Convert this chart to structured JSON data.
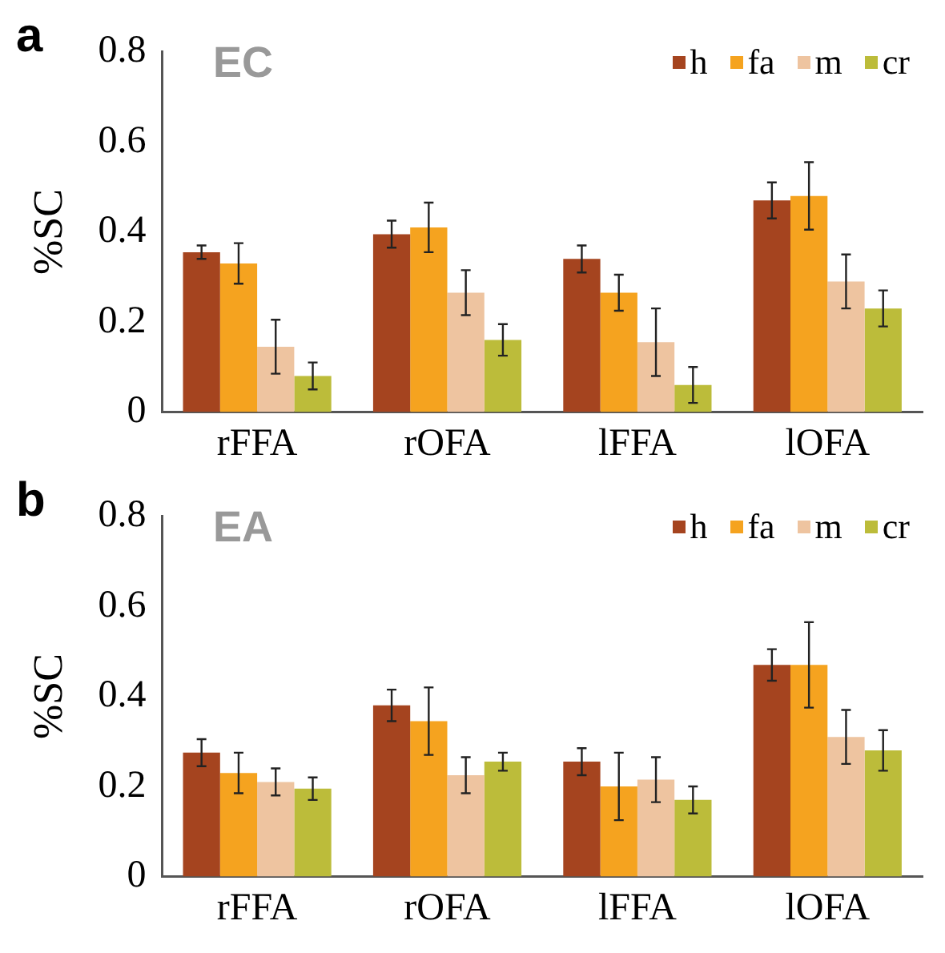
{
  "chart_data": [
    {
      "type": "bar",
      "title": "a",
      "subtitle": "EC",
      "ylabel": "%SC",
      "categories": [
        "rFFA",
        "rOFA",
        "lFFA",
        "lOFA"
      ],
      "ylim": [
        0,
        0.8
      ],
      "yticks": [
        0,
        0.2,
        0.4,
        0.6,
        0.8
      ],
      "legend": "top right",
      "grid": false,
      "series": [
        {
          "name": "h",
          "color": "#a5441f",
          "values": [
            0.355,
            0.395,
            0.34,
            0.47
          ],
          "errors": [
            0.015,
            0.03,
            0.03,
            0.04
          ]
        },
        {
          "name": "fa",
          "color": "#f5a31f",
          "values": [
            0.33,
            0.41,
            0.265,
            0.48
          ],
          "errors": [
            0.045,
            0.055,
            0.04,
            0.075
          ]
        },
        {
          "name": "m",
          "color": "#eec4a0",
          "values": [
            0.145,
            0.265,
            0.155,
            0.29
          ],
          "errors": [
            0.06,
            0.05,
            0.075,
            0.06
          ]
        },
        {
          "name": "cr",
          "color": "#bcbc3a",
          "values": [
            0.08,
            0.16,
            0.06,
            0.23
          ],
          "errors": [
            0.03,
            0.035,
            0.04,
            0.04
          ]
        }
      ]
    },
    {
      "type": "bar",
      "title": "b",
      "subtitle": "EA",
      "ylabel": "%SC",
      "categories": [
        "rFFA",
        "rOFA",
        "lFFA",
        "lOFA"
      ],
      "ylim": [
        0,
        0.8
      ],
      "yticks": [
        0,
        0.2,
        0.4,
        0.6,
        0.8
      ],
      "legend": "top right",
      "grid": false,
      "series": [
        {
          "name": "h",
          "color": "#a5441f",
          "values": [
            0.275,
            0.38,
            0.255,
            0.47
          ],
          "errors": [
            0.03,
            0.035,
            0.03,
            0.035
          ]
        },
        {
          "name": "fa",
          "color": "#f5a31f",
          "values": [
            0.23,
            0.345,
            0.2,
            0.47
          ],
          "errors": [
            0.045,
            0.075,
            0.075,
            0.095
          ]
        },
        {
          "name": "m",
          "color": "#eec4a0",
          "values": [
            0.21,
            0.225,
            0.215,
            0.31
          ],
          "errors": [
            0.03,
            0.04,
            0.05,
            0.06
          ]
        },
        {
          "name": "cr",
          "color": "#bcbc3a",
          "values": [
            0.195,
            0.255,
            0.17,
            0.28
          ],
          "errors": [
            0.025,
            0.02,
            0.03,
            0.045
          ]
        }
      ]
    }
  ]
}
